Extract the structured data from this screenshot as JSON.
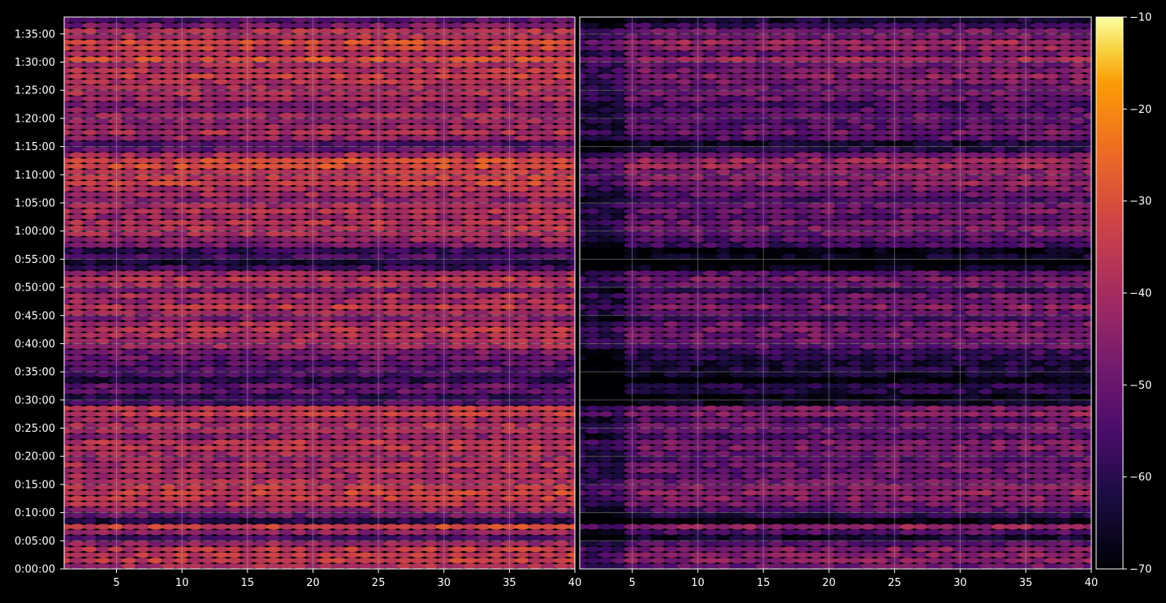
{
  "chart_data": {
    "type": "heatmap",
    "title": "",
    "xlabel": "",
    "ylabel": "",
    "panels": [
      {
        "name": "",
        "xlim": [
          1,
          40
        ]
      },
      {
        "name": "",
        "xlim": [
          1,
          40
        ]
      }
    ],
    "x_ticks": [
      {
        "value": 5,
        "label": "5"
      },
      {
        "value": 10,
        "label": "10"
      },
      {
        "value": 15,
        "label": "15"
      },
      {
        "value": 20,
        "label": "20"
      },
      {
        "value": 25,
        "label": "25"
      },
      {
        "value": 30,
        "label": "30"
      },
      {
        "value": 35,
        "label": "35"
      },
      {
        "value": 40,
        "label": "40"
      }
    ],
    "ylim": [
      0,
      98
    ],
    "y_ticks": [
      {
        "value": 0,
        "label": "0:00:00"
      },
      {
        "value": 5,
        "label": "0:05:00"
      },
      {
        "value": 10,
        "label": "0:10:00"
      },
      {
        "value": 15,
        "label": "0:15:00"
      },
      {
        "value": 20,
        "label": "0:20:00"
      },
      {
        "value": 25,
        "label": "0:25:00"
      },
      {
        "value": 30,
        "label": "0:30:00"
      },
      {
        "value": 35,
        "label": "0:35:00"
      },
      {
        "value": 40,
        "label": "0:40:00"
      },
      {
        "value": 45,
        "label": "0:45:00"
      },
      {
        "value": 50,
        "label": "0:50:00"
      },
      {
        "value": 55,
        "label": "0:55:00"
      },
      {
        "value": 60,
        "label": "1:00:00"
      },
      {
        "value": 65,
        "label": "1:05:00"
      },
      {
        "value": 70,
        "label": "1:10:00"
      },
      {
        "value": 75,
        "label": "1:15:00"
      },
      {
        "value": 80,
        "label": "1:20:00"
      },
      {
        "value": 85,
        "label": "1:25:00"
      },
      {
        "value": 90,
        "label": "1:30:00"
      },
      {
        "value": 95,
        "label": "1:35:00"
      }
    ],
    "grid": true,
    "colorbar": {
      "colormap": "inferno",
      "range": [
        -70,
        -10
      ],
      "ticks": [
        {
          "value": -10,
          "label": "−10"
        },
        {
          "value": -20,
          "label": "−20"
        },
        {
          "value": -30,
          "label": "−30"
        },
        {
          "value": -40,
          "label": "−40"
        },
        {
          "value": -50,
          "label": "−50"
        },
        {
          "value": -60,
          "label": "−60"
        },
        {
          "value": -70,
          "label": "−70"
        }
      ],
      "placement": "right"
    },
    "row_profile": [
      [
        0,
        -41
      ],
      [
        1,
        -36
      ],
      [
        2,
        -37
      ],
      [
        3,
        -37
      ],
      [
        4,
        -44
      ],
      [
        5,
        -56
      ],
      [
        6,
        -45
      ],
      [
        7,
        -34
      ],
      [
        8,
        -62
      ],
      [
        9,
        -51
      ],
      [
        10,
        -44
      ],
      [
        11,
        -39
      ],
      [
        12,
        -37
      ],
      [
        13,
        -35
      ],
      [
        14,
        -37
      ],
      [
        15,
        -40
      ],
      [
        16,
        -42
      ],
      [
        17,
        -41
      ],
      [
        18,
        -40
      ],
      [
        19,
        -44
      ],
      [
        20,
        -41
      ],
      [
        21,
        -38
      ],
      [
        22,
        -38
      ],
      [
        23,
        -46
      ],
      [
        24,
        -41
      ],
      [
        25,
        -40
      ],
      [
        26,
        -44
      ],
      [
        27,
        -36
      ],
      [
        28,
        -38
      ],
      [
        29,
        -56
      ],
      [
        30,
        -60
      ],
      [
        31,
        -53
      ],
      [
        32,
        -52
      ],
      [
        33,
        -62
      ],
      [
        34,
        -56
      ],
      [
        35,
        -54
      ],
      [
        36,
        -54
      ],
      [
        37,
        -51
      ],
      [
        38,
        -49
      ],
      [
        39,
        -43
      ],
      [
        40,
        -41
      ],
      [
        41,
        -40
      ],
      [
        42,
        -38
      ],
      [
        43,
        -40
      ],
      [
        44,
        -48
      ],
      [
        45,
        -42
      ],
      [
        46,
        -37
      ],
      [
        47,
        -43
      ],
      [
        48,
        -40
      ],
      [
        49,
        -50
      ],
      [
        50,
        -40
      ],
      [
        51,
        -38
      ],
      [
        52,
        -44
      ],
      [
        53,
        -58
      ],
      [
        54,
        -64
      ],
      [
        55,
        -56
      ],
      [
        56,
        -60
      ],
      [
        57,
        -48
      ],
      [
        58,
        -45
      ],
      [
        59,
        -41
      ],
      [
        60,
        -39
      ],
      [
        61,
        -39
      ],
      [
        62,
        -43
      ],
      [
        63,
        -40
      ],
      [
        64,
        -41
      ],
      [
        65,
        -47
      ],
      [
        66,
        -42
      ],
      [
        67,
        -40
      ],
      [
        68,
        -35
      ],
      [
        69,
        -37
      ],
      [
        70,
        -37
      ],
      [
        71,
        -32
      ],
      [
        72,
        -33
      ],
      [
        73,
        -41
      ],
      [
        74,
        -52
      ],
      [
        75,
        -56
      ],
      [
        76,
        -44
      ],
      [
        77,
        -40
      ],
      [
        78,
        -43
      ],
      [
        79,
        -44
      ],
      [
        80,
        -42
      ],
      [
        81,
        -45
      ],
      [
        82,
        -47
      ],
      [
        83,
        -41
      ],
      [
        84,
        -40
      ],
      [
        85,
        -41
      ],
      [
        86,
        -39
      ],
      [
        87,
        -36
      ],
      [
        88,
        -39
      ],
      [
        89,
        -40
      ],
      [
        90,
        -32
      ],
      [
        91,
        -41
      ],
      [
        92,
        -35
      ],
      [
        93,
        -33
      ],
      [
        94,
        -40
      ],
      [
        95,
        -39
      ],
      [
        96,
        -48
      ],
      [
        97,
        -55
      ]
    ],
    "panel_offset": [
      0,
      -10
    ],
    "column_gradient": {
      "start": 0,
      "end": 2.5
    }
  }
}
